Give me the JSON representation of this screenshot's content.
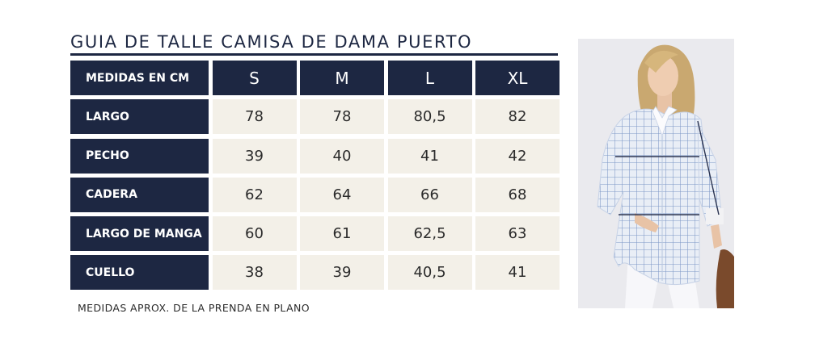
{
  "title": "GUIA DE TALLE CAMISA DE DAMA PUERTO",
  "table": {
    "corner_label": "MEDIDAS EN CM",
    "sizes": [
      "S",
      "M",
      "L",
      "XL"
    ],
    "rows": [
      {
        "label": "LARGO",
        "values": [
          "78",
          "78",
          "80,5",
          "82"
        ]
      },
      {
        "label": "PECHO",
        "values": [
          "39",
          "40",
          "41",
          "42"
        ]
      },
      {
        "label": "CADERA",
        "values": [
          "62",
          "64",
          "66",
          "68"
        ]
      },
      {
        "label": "LARGO DE MANGA",
        "values": [
          "60",
          "61",
          "62,5",
          "63"
        ]
      },
      {
        "label": "CUELLO",
        "values": [
          "38",
          "39",
          "40,5",
          "41"
        ]
      }
    ]
  },
  "note": "MEDIDAS APROX. DE LA PRENDA EN PLANO",
  "colors": {
    "navy": "#1d2742",
    "cream": "#f3f0e8",
    "text": "#2b2b2b"
  },
  "image": {
    "subject": "model-in-checked-shirt"
  }
}
